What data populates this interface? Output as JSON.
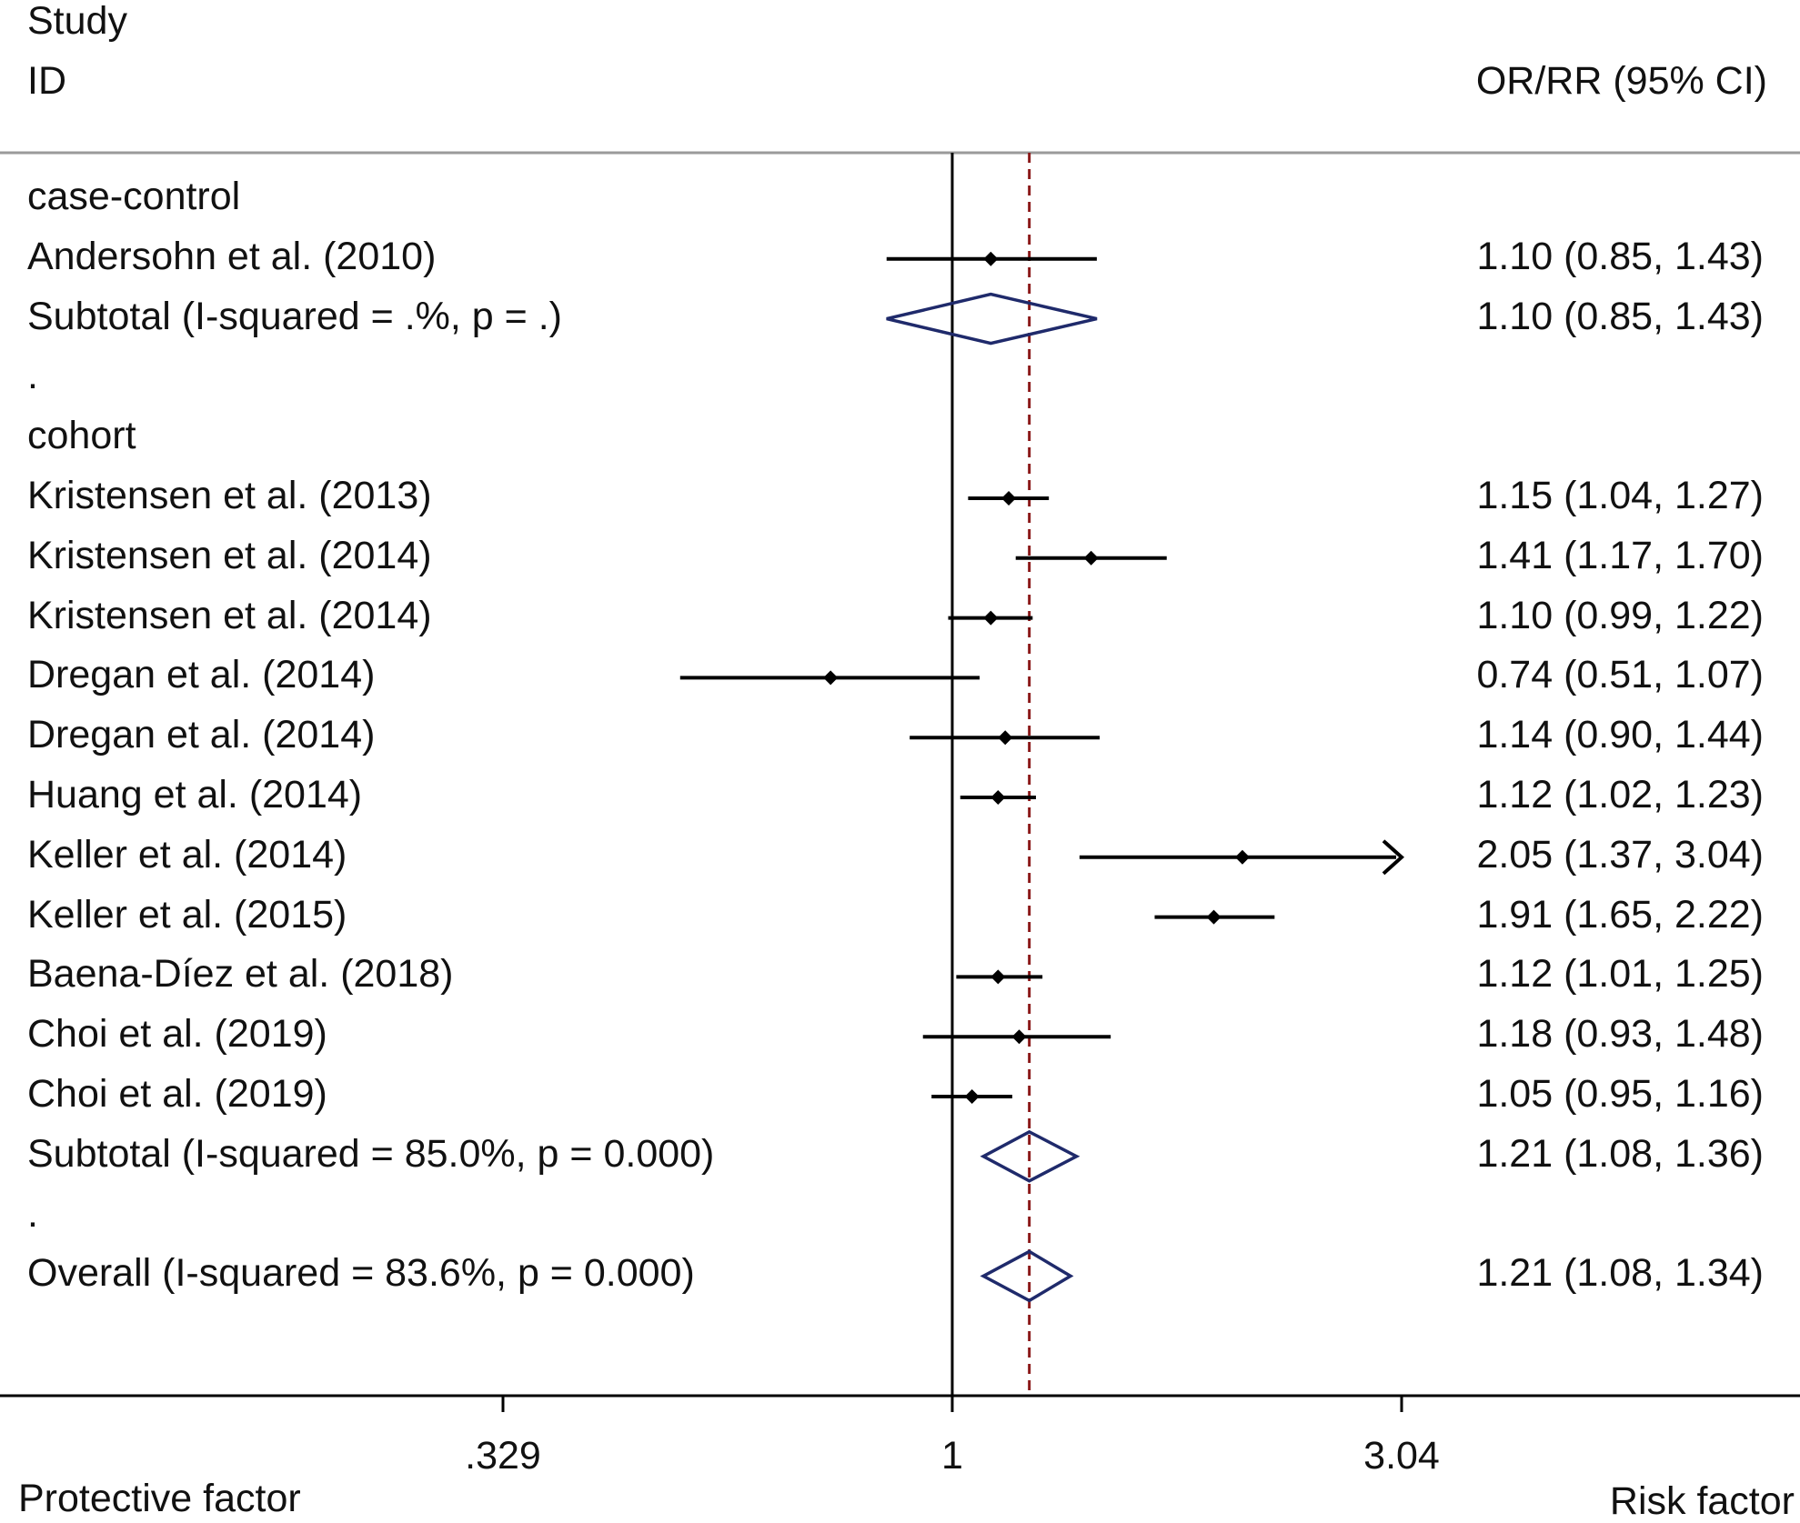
{
  "header": {
    "study_label_1": "Study",
    "study_label_2": "ID",
    "estimate_label": "OR/RR (95% CI)"
  },
  "footer": {
    "left_label": "Protective factor",
    "right_label": "Risk factor"
  },
  "chart_data": {
    "type": "forest",
    "scale": "log",
    "xlim": [
      0.329,
      3.04
    ],
    "xticks": [
      {
        "value": 0.329,
        "label": ".329"
      },
      {
        "value": 1,
        "label": "1"
      },
      {
        "value": 3.04,
        "label": "3.04"
      }
    ],
    "null_line": 1,
    "overall_line": 1.21,
    "colors": {
      "diamond": "#1f2a6b",
      "overall_line": "#8b1a1a",
      "marks": "#000000"
    },
    "rows": [
      {
        "kind": "group",
        "label": "case-control"
      },
      {
        "kind": "study",
        "label": "Andersohn et al. (2010)",
        "est": 1.1,
        "lo": 0.85,
        "hi": 1.43,
        "text": "1.10 (0.85, 1.43)"
      },
      {
        "kind": "subtotal",
        "label": "Subtotal  (I-squared = .%, p = .)",
        "est": 1.1,
        "lo": 0.85,
        "hi": 1.43,
        "text": "1.10 (0.85, 1.43)"
      },
      {
        "kind": "spacer",
        "label": "."
      },
      {
        "kind": "group",
        "label": "cohort"
      },
      {
        "kind": "study",
        "label": "Kristensen et al. (2013)",
        "est": 1.15,
        "lo": 1.04,
        "hi": 1.27,
        "text": "1.15 (1.04, 1.27)"
      },
      {
        "kind": "study",
        "label": "Kristensen et al. (2014)",
        "est": 1.41,
        "lo": 1.17,
        "hi": 1.7,
        "text": "1.41 (1.17, 1.70)"
      },
      {
        "kind": "study",
        "label": "Kristensen et al. (2014)",
        "est": 1.1,
        "lo": 0.99,
        "hi": 1.22,
        "text": "1.10 (0.99, 1.22)"
      },
      {
        "kind": "study",
        "label": "Dregan et al. (2014)",
        "est": 0.74,
        "lo": 0.51,
        "hi": 1.07,
        "text": "0.74 (0.51, 1.07)"
      },
      {
        "kind": "study",
        "label": "Dregan et al. (2014)",
        "est": 1.14,
        "lo": 0.9,
        "hi": 1.44,
        "text": "1.14 (0.90, 1.44)"
      },
      {
        "kind": "study",
        "label": "Huang et al. (2014)",
        "est": 1.12,
        "lo": 1.02,
        "hi": 1.23,
        "text": "1.12 (1.02, 1.23)"
      },
      {
        "kind": "study",
        "label": "Keller et al. (2014)",
        "est": 2.05,
        "lo": 1.37,
        "hi": 3.04,
        "text": "2.05 (1.37, 3.04)"
      },
      {
        "kind": "study",
        "label": "Keller et al. (2015)",
        "est": 1.91,
        "lo": 1.65,
        "hi": 2.22,
        "text": "1.91 (1.65, 2.22)"
      },
      {
        "kind": "study",
        "label": "Baena-Díez et al. (2018)",
        "est": 1.12,
        "lo": 1.01,
        "hi": 1.25,
        "text": "1.12 (1.01, 1.25)"
      },
      {
        "kind": "study",
        "label": "Choi et al. (2019)",
        "est": 1.18,
        "lo": 0.93,
        "hi": 1.48,
        "text": "1.18 (0.93, 1.48)"
      },
      {
        "kind": "study",
        "label": "Choi et al. (2019)",
        "est": 1.05,
        "lo": 0.95,
        "hi": 1.16,
        "text": "1.05 (0.95, 1.16)"
      },
      {
        "kind": "subtotal",
        "label": "Subtotal  (I-squared = 85.0%, p = 0.000)",
        "est": 1.21,
        "lo": 1.08,
        "hi": 1.36,
        "text": "1.21 (1.08, 1.36)"
      },
      {
        "kind": "spacer",
        "label": "."
      },
      {
        "kind": "overall",
        "label": "Overall  (I-squared = 83.6%, p = 0.000)",
        "est": 1.21,
        "lo": 1.08,
        "hi": 1.34,
        "text": "1.21 (1.08, 1.34)"
      }
    ]
  }
}
